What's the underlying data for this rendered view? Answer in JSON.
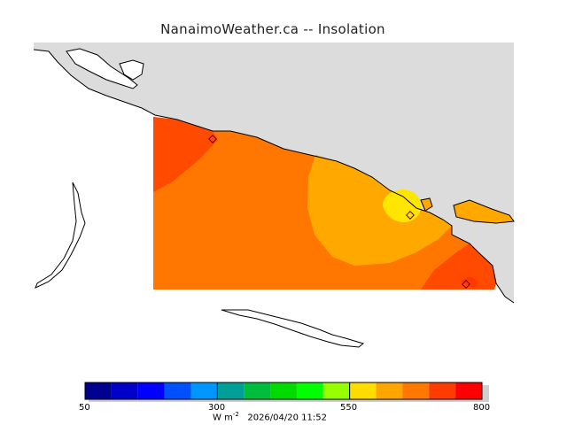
{
  "title": "NanaimoWeather.ca -- Insolation",
  "colorbar": {
    "tick_labels": [
      "50",
      "300",
      "550",
      "800"
    ],
    "colors": [
      "#000090",
      "#0000c8",
      "#0000ff",
      "#0050ff",
      "#0096ff",
      "#00a096",
      "#00be3c",
      "#00dc00",
      "#00ff00",
      "#96ff00",
      "#ffdc00",
      "#ffa500",
      "#ff7800",
      "#ff3c00",
      "#ff0000"
    ]
  },
  "units_text": "W m",
  "units_exponent": "-2",
  "timestamp": "2026/04/20 11:52",
  "colors": {
    "land": "#dcdcdc",
    "coast": "#000000",
    "field_high": "#ff4a00",
    "field_mid": "#ff7700",
    "field_low": "#ffa800",
    "field_min": "#ffe600"
  }
}
